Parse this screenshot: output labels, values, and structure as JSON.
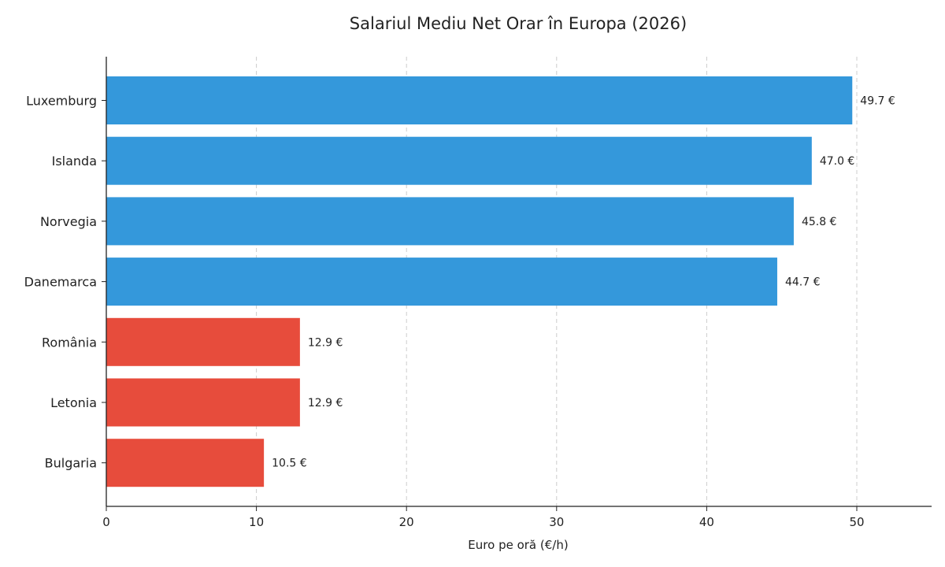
{
  "chart_data": {
    "type": "bar",
    "orientation": "horizontal",
    "title": "Salariul Mediu Net Orar în Europa (2026)",
    "xlabel": "Euro pe oră (€/h)",
    "ylabel": "",
    "xlim": [
      0,
      55
    ],
    "xticks": [
      0,
      10,
      20,
      30,
      40,
      50
    ],
    "grid": "vertical dashed",
    "categories": [
      "Luxemburg",
      "Islanda",
      "Norvegia",
      "Danemarca",
      "România",
      "Letonia",
      "Bulgaria"
    ],
    "values": [
      49.7,
      47.0,
      45.8,
      44.7,
      12.9,
      12.9,
      10.5
    ],
    "value_labels": [
      "49.7 €",
      "47.0 €",
      "45.8 €",
      "44.7 €",
      "12.9 €",
      "12.9 €",
      "10.5 €"
    ],
    "colors": [
      "#3498db",
      "#3498db",
      "#3498db",
      "#3498db",
      "#e74c3c",
      "#e74c3c",
      "#e74c3c"
    ]
  }
}
